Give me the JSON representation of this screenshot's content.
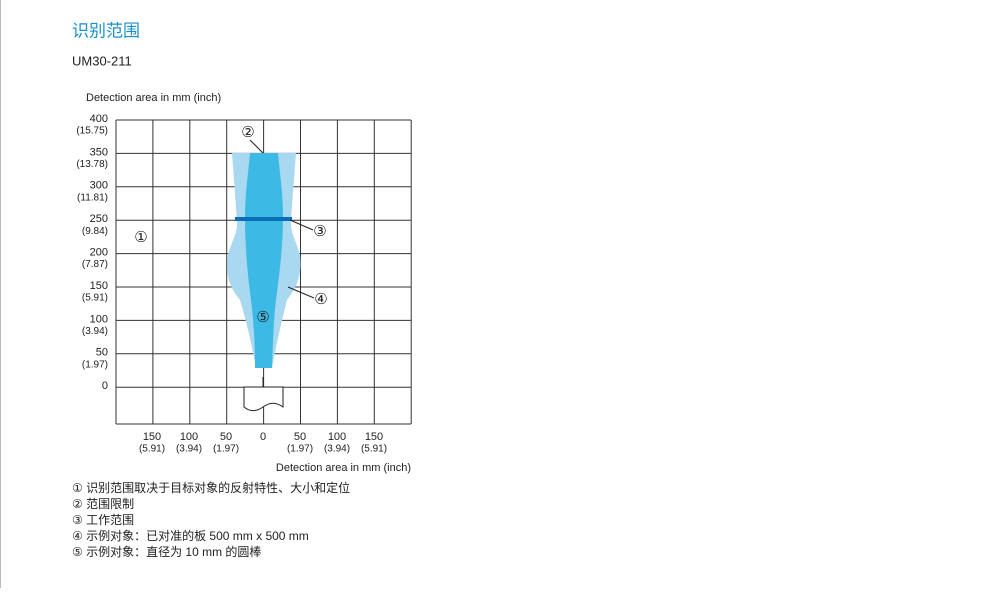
{
  "header": {
    "title": "识别范围",
    "subtitle": "UM30-211"
  },
  "y_axis": {
    "label": "Detection area in mm (inch)",
    "ticks": [
      {
        "mm": "400",
        "inch": "(15.75)"
      },
      {
        "mm": "350",
        "inch": "(13.78)"
      },
      {
        "mm": "300",
        "inch": "(11.81)"
      },
      {
        "mm": "250",
        "inch": "(9.84)"
      },
      {
        "mm": "200",
        "inch": "(7.87)"
      },
      {
        "mm": "150",
        "inch": "(5.91)"
      },
      {
        "mm": "100",
        "inch": "(3.94)"
      },
      {
        "mm": "50",
        "inch": "(1.97)"
      },
      {
        "mm": "0",
        "inch": null
      }
    ]
  },
  "x_axis": {
    "label": "Detection area in mm (inch)",
    "ticks": [
      {
        "mm": "150",
        "inch": "(5.91)"
      },
      {
        "mm": "100",
        "inch": "(3.94)"
      },
      {
        "mm": "50",
        "inch": "(1.97)"
      },
      {
        "mm": "0",
        "inch": null
      },
      {
        "mm": "50",
        "inch": "(1.97)"
      },
      {
        "mm": "100",
        "inch": "(3.94)"
      },
      {
        "mm": "150",
        "inch": "(5.91)"
      }
    ]
  },
  "callouts": [
    "①",
    "②",
    "③",
    "④",
    "⑤"
  ],
  "legend": [
    "① 识别范围取决于目标对象的反射特性、大小和定位",
    "② 范围限制",
    "③ 工作范围",
    "④ 示例对象：已对准的板 500 mm x 500 mm",
    "⑤ 示例对象：直径为 10 mm 的圆棒"
  ]
}
